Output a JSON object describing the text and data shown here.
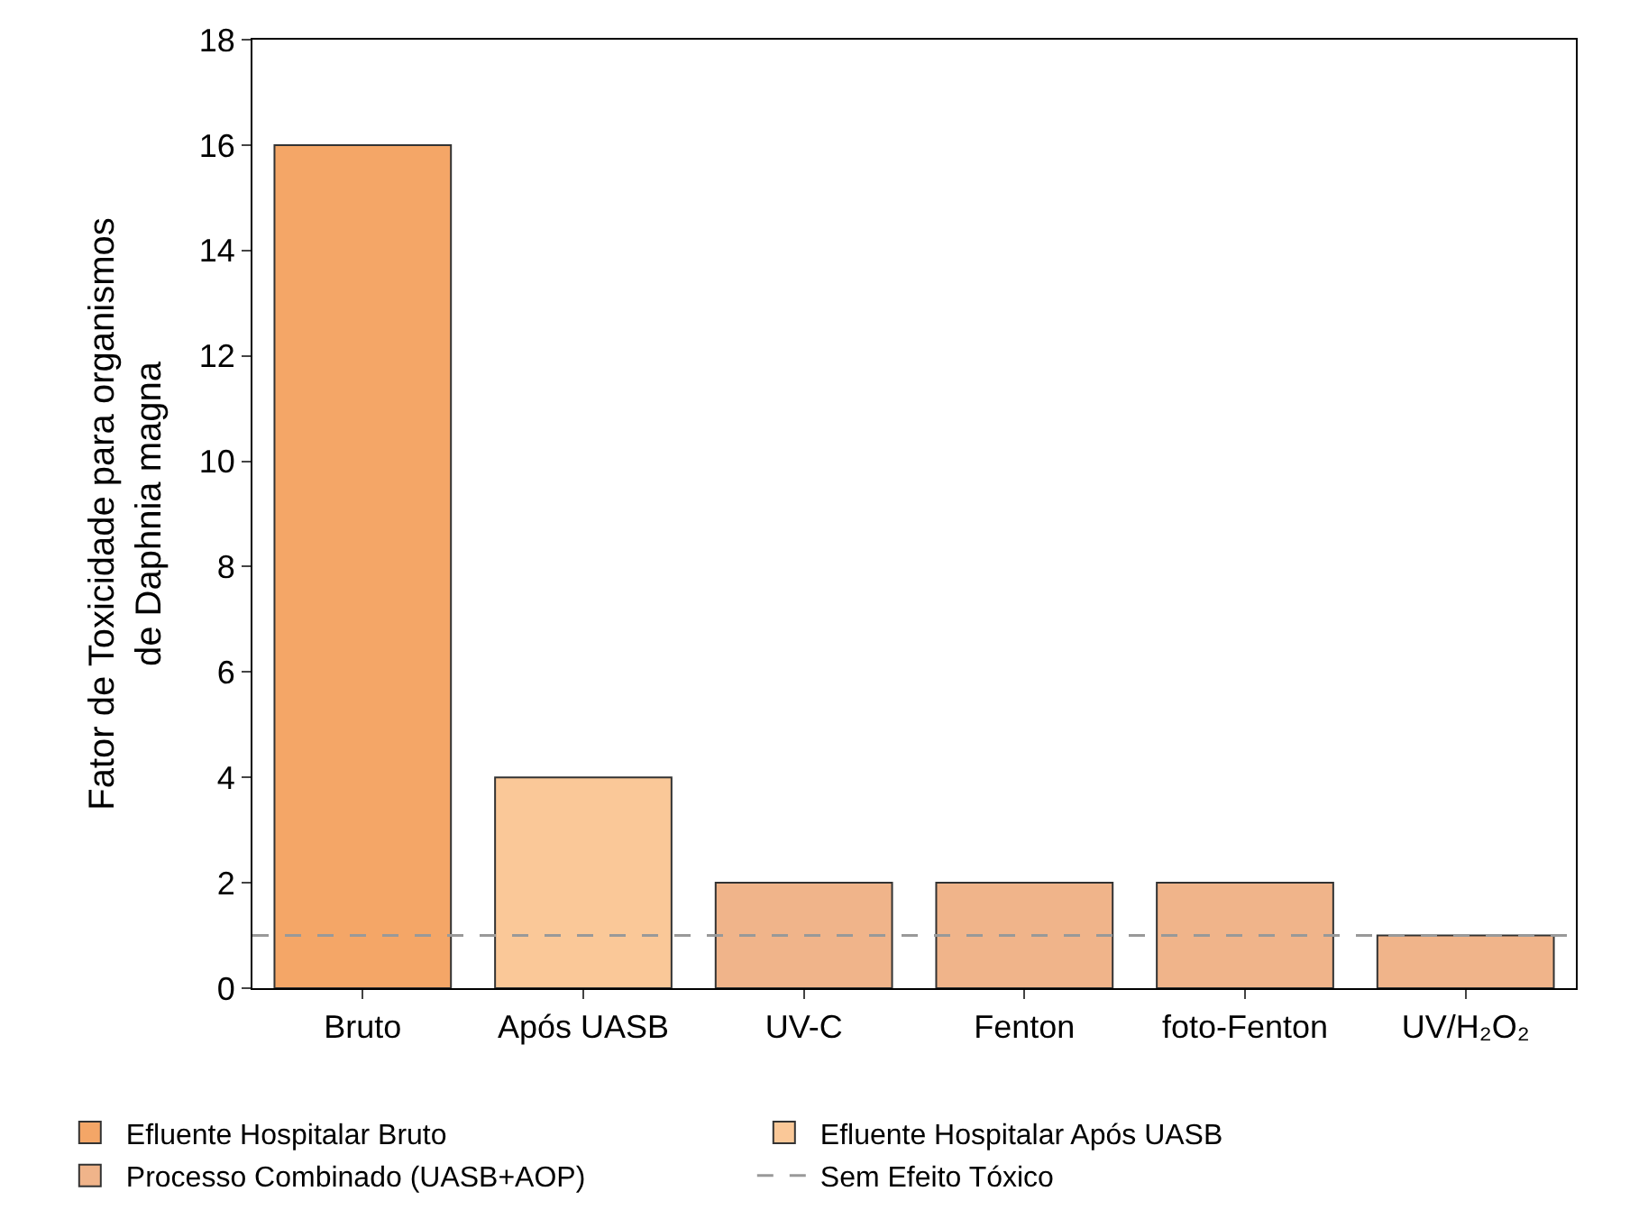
{
  "chart_data": {
    "type": "bar",
    "ylabel": "Fator de Toxicidade para organismos\nde Daphnia magna",
    "categories": [
      "Bruto",
      "Após UASB",
      "UV-C",
      "Fenton",
      "foto-Fenton",
      "UV/H₂O₂"
    ],
    "series": [
      {
        "name": "Efluente Hospitalar Bruto",
        "color": "#f4a667",
        "values": [
          16,
          null,
          null,
          null,
          null,
          null
        ]
      },
      {
        "name": "Efluente Hospitalar Após UASB",
        "color": "#fac898",
        "values": [
          null,
          4,
          null,
          null,
          null,
          null
        ]
      },
      {
        "name": "Processo Combinado (UASB+AOP)",
        "color": "#f0b48a",
        "values": [
          null,
          null,
          2,
          2,
          2,
          1
        ]
      }
    ],
    "ylim": [
      0,
      18
    ],
    "yticks": [
      0,
      2,
      4,
      6,
      8,
      10,
      12,
      14,
      16,
      18
    ],
    "ref_lines": [
      {
        "axis": "y",
        "value": 1,
        "label": "Sem Efeito Tóxico",
        "color": "#999999",
        "line_style": "dashed"
      }
    ],
    "legend": "bottom"
  }
}
